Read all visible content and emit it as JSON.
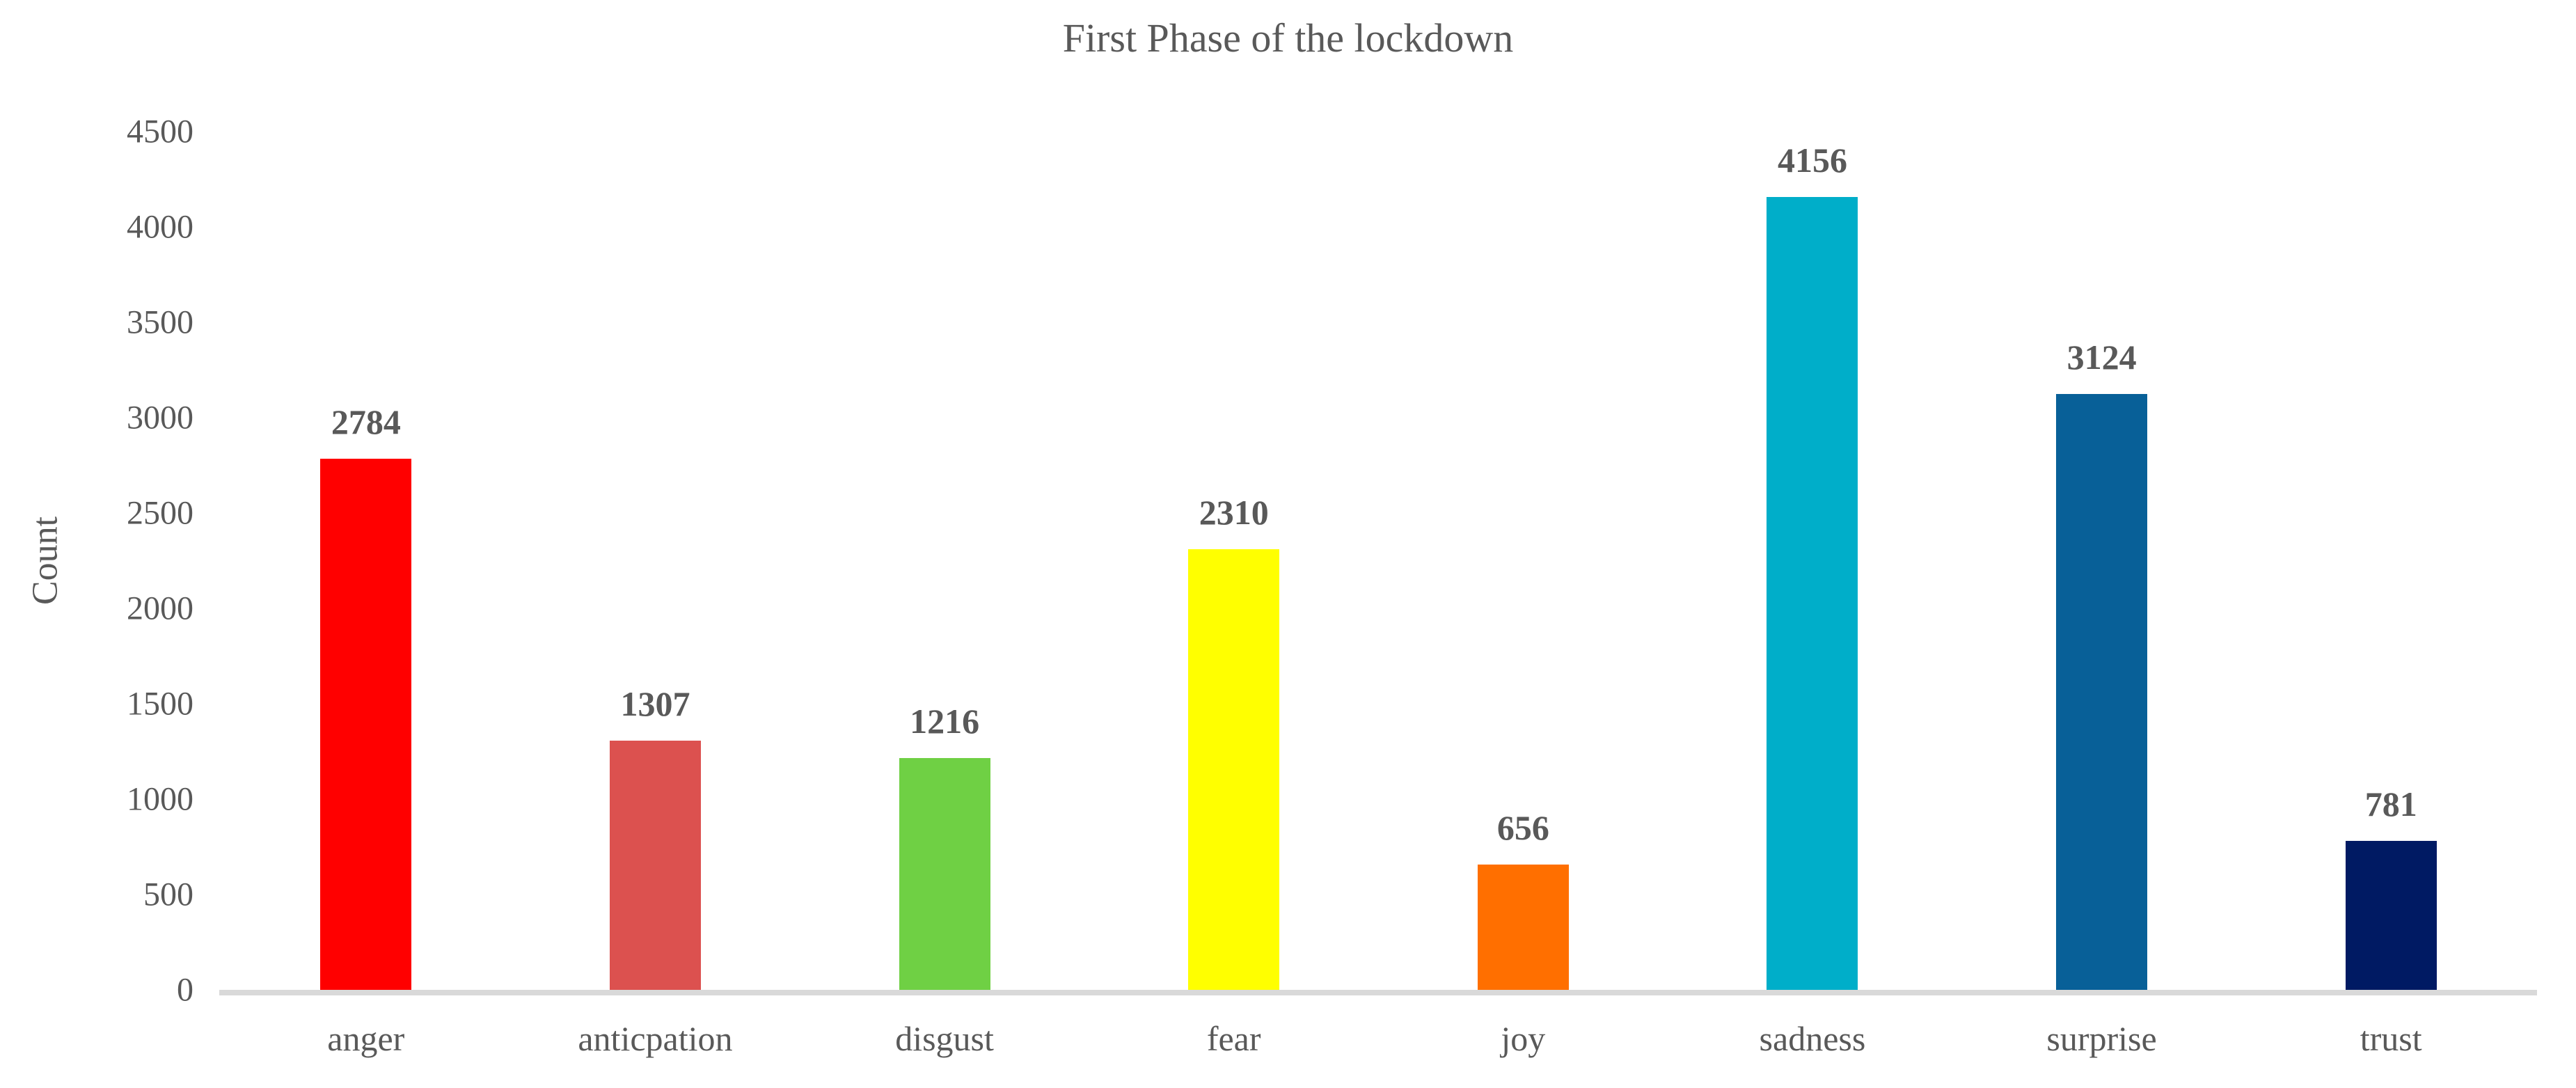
{
  "chart_data": {
    "type": "bar",
    "title": "First Phase of the lockdown",
    "xlabel": "",
    "ylabel": "Count",
    "categories": [
      "anger",
      "anticpation",
      "disgust",
      "fear",
      "joy",
      "sadness",
      "surprise",
      "trust"
    ],
    "values": [
      2784,
      1307,
      1216,
      2310,
      656,
      4156,
      3124,
      781
    ],
    "bar_colors": [
      "#FF0000",
      "#DC514F",
      "#6FD044",
      "#FFFF00",
      "#FF6F00",
      "#00AEC9",
      "#086098",
      "#001A63"
    ],
    "data_labels": [
      "2784",
      "1307",
      "1216",
      "2310",
      "656",
      "4156",
      "3124",
      "781"
    ],
    "ylim": [
      0,
      4500
    ],
    "yticks": [
      0,
      500,
      1000,
      1500,
      2000,
      2500,
      3000,
      3500,
      4000,
      4500
    ],
    "grid": false,
    "legend": "none"
  },
  "colors": {
    "text": "#595959",
    "axis_line": "#D9D9D9",
    "background": "#FFFFFF"
  }
}
